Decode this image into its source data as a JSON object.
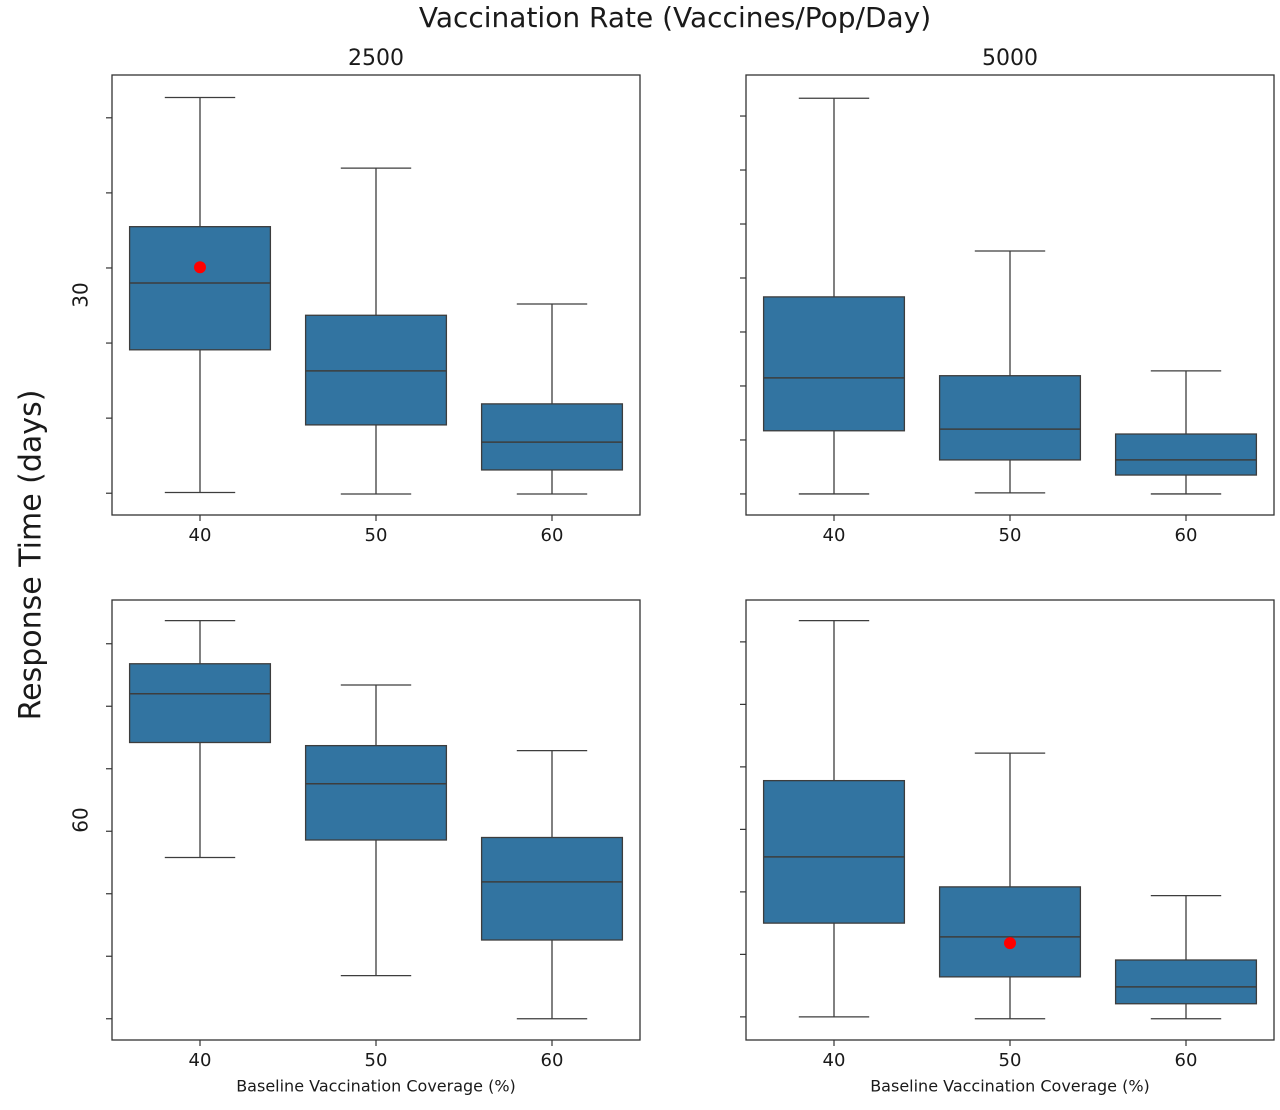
{
  "title": "Vaccination Rate (Vaccines/Pop/Day)",
  "ylabel": "Response Time (days)",
  "chart_data": [
    {
      "type": "box",
      "title": "2500",
      "ylabel": "30",
      "color": "#3274a1",
      "mean_color": "#ff0000",
      "categories": [
        "40",
        "50",
        "60"
      ],
      "boxes": [
        {
          "whislo": 0.01,
          "q1": 1.91,
          "med": 2.8,
          "q3": 3.55,
          "whishi": 5.27,
          "mean": 3.01
        },
        {
          "whislo": -0.01,
          "q1": 0.91,
          "med": 1.63,
          "q3": 2.37,
          "whishi": 4.33
        },
        {
          "whislo": -0.01,
          "q1": 0.31,
          "med": 0.68,
          "q3": 1.19,
          "whishi": 2.52
        }
      ],
      "ylim": [
        -0.29,
        5.57
      ],
      "yticks": [
        0,
        1,
        2,
        3,
        4,
        5
      ]
    },
    {
      "type": "box",
      "title": "5000",
      "color": "#3274a1",
      "mean_color": "#ff0000",
      "categories": [
        "40",
        "50",
        "60"
      ],
      "boxes": [
        {
          "whislo": 0,
          "q1": 1.17,
          "med": 2.15,
          "q3": 3.65,
          "whishi": 7.33
        },
        {
          "whislo": 0.02,
          "q1": 0.63,
          "med": 1.2,
          "q3": 2.19,
          "whishi": 4.5
        },
        {
          "whislo": 0,
          "q1": 0.35,
          "med": 0.63,
          "q3": 1.11,
          "whishi": 2.28
        }
      ],
      "ylim": [
        -0.39,
        7.76
      ],
      "yticks": [
        0,
        1,
        2,
        3,
        4,
        5,
        6,
        7
      ]
    },
    {
      "type": "box",
      "ylabel": "60",
      "xlabel": "Baseline Vaccination Coverage (%)",
      "color": "#3274a1",
      "mean_color": "#ff0000",
      "categories": [
        "40",
        "50",
        "60"
      ],
      "boxes": [
        {
          "whislo": 2.58,
          "q1": 4.42,
          "med": 5.2,
          "q3": 5.68,
          "whishi": 6.37
        },
        {
          "whislo": 0.69,
          "q1": 2.86,
          "med": 3.76,
          "q3": 4.37,
          "whishi": 5.34
        },
        {
          "whislo": 0,
          "q1": 1.26,
          "med": 2.19,
          "q3": 2.9,
          "whishi": 4.29
        }
      ],
      "ylim": [
        -0.34,
        6.7
      ],
      "yticks": [
        0,
        1,
        2,
        3,
        4,
        5,
        6
      ]
    },
    {
      "type": "box",
      "xlabel": "Baseline Vaccination Coverage (%)",
      "color": "#3274a1",
      "mean_color": "#ff0000",
      "categories": [
        "40",
        "50",
        "60"
      ],
      "boxes": [
        {
          "whislo": 0,
          "q1": 1.5,
          "med": 2.56,
          "q3": 3.78,
          "whishi": 6.34
        },
        {
          "whislo": -0.03,
          "q1": 0.64,
          "med": 1.28,
          "q3": 2.08,
          "whishi": 4.22,
          "mean": 1.18
        },
        {
          "whislo": -0.03,
          "q1": 0.21,
          "med": 0.48,
          "q3": 0.91,
          "whishi": 1.94
        }
      ],
      "ylim": [
        -0.37,
        6.67
      ],
      "yticks": [
        0,
        1,
        2,
        3,
        4,
        5,
        6
      ]
    }
  ]
}
